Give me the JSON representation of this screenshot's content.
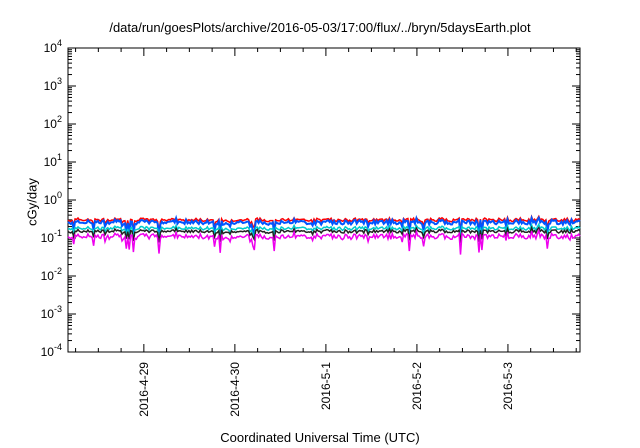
{
  "chart_data": {
    "type": "line",
    "title": "/data/run/goesPlots/archive/2016-05-03/17:00/flux/../bryn/5daysEarth.plot",
    "xlabel": "Coordinated Universal Time (UTC)",
    "ylabel": "cGy/day",
    "yscale": "log",
    "ylim": [
      0.0001,
      10000
    ],
    "xlim": [
      "2016-04-28 04:00",
      "2016-05-03 19:00"
    ],
    "yticks": [
      {
        "base": "10",
        "exp": "4",
        "value": 10000
      },
      {
        "base": "10",
        "exp": "3",
        "value": 1000
      },
      {
        "base": "10",
        "exp": "2",
        "value": 100
      },
      {
        "base": "10",
        "exp": "1",
        "value": 10
      },
      {
        "base": "10",
        "exp": "0",
        "value": 1
      },
      {
        "base": "10",
        "exp": "-1",
        "value": 0.1
      },
      {
        "base": "10",
        "exp": "-2",
        "value": 0.01
      },
      {
        "base": "10",
        "exp": "-3",
        "value": 0.001
      },
      {
        "base": "10",
        "exp": "-4",
        "value": 0.0001
      }
    ],
    "xticks": [
      {
        "label": "2016-4-29",
        "value": "2016-04-29 00:00"
      },
      {
        "label": "2016-4-30",
        "value": "2016-04-30 00:00"
      },
      {
        "label": "2016-5-1",
        "value": "2016-05-01 00:00"
      },
      {
        "label": "2016-5-2",
        "value": "2016-05-02 00:00"
      },
      {
        "label": "2016-5-3",
        "value": "2016-05-03 00:00"
      }
    ],
    "grid": false,
    "legend": "none",
    "series": [
      {
        "color": "#ff0000",
        "level": 0.3
      },
      {
        "color": "#0055ff",
        "level": 0.26
      },
      {
        "color": "#00cccc",
        "level": 0.18
      },
      {
        "color": "#222222",
        "level": 0.15
      },
      {
        "color": "#ee00ee",
        "level": 0.11
      }
    ]
  }
}
